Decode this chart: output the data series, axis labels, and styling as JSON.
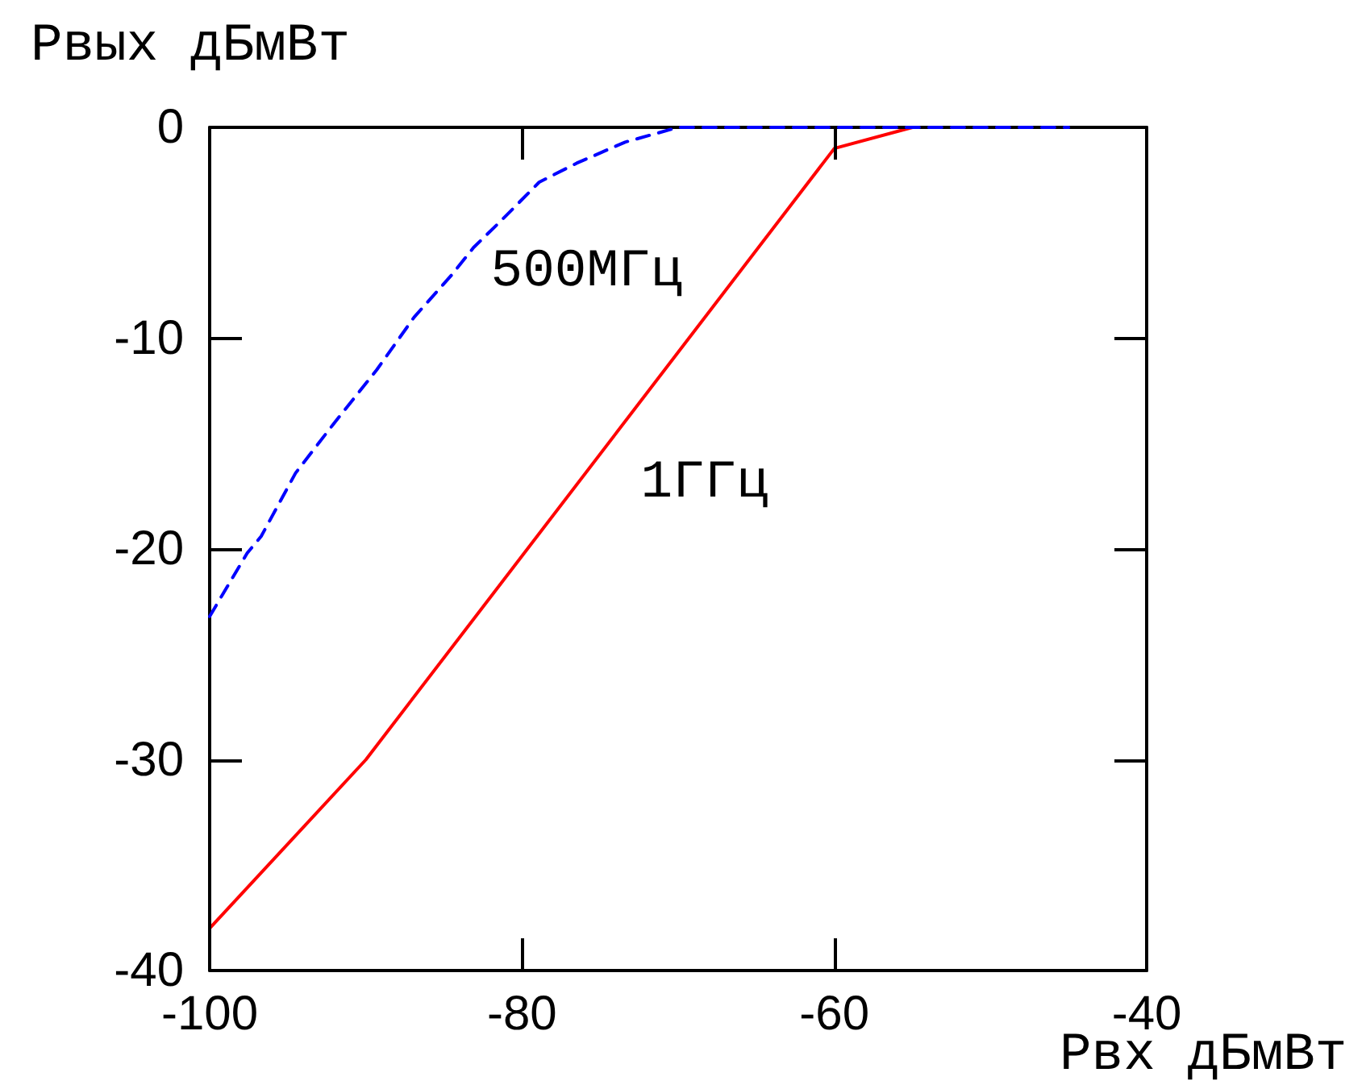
{
  "chart_data": {
    "type": "line",
    "xlabel": "Рвх дБмВт",
    "ylabel": "Рвых дБмВт",
    "xlim": [
      -100,
      -40
    ],
    "xticks": [
      -100,
      -80,
      -60,
      -40
    ],
    "ylim": [
      -40,
      0
    ],
    "yticks": [
      -40,
      -30,
      -20,
      -10,
      0
    ],
    "grid": false,
    "legend": false,
    "marker": "none",
    "series": [
      {
        "name": "500МГц",
        "color": "#0000ff",
        "line_style": "dashed",
        "x": [
          -100,
          -97.6,
          -96.7,
          -94.5,
          -92.1,
          -89.3,
          -86.9,
          -84.5,
          -83.1,
          -81.3,
          -78.9,
          -76.5,
          -73.4,
          -70,
          -45
        ],
        "values": [
          -23.2,
          -20.2,
          -19.4,
          -16.4,
          -14.1,
          -11.5,
          -9.0,
          -7.0,
          -5.7,
          -4.4,
          -2.6,
          -1.7,
          -0.7,
          0,
          0
        ]
      },
      {
        "name": "1ГГц",
        "color": "#ff0000",
        "line_style": "solid",
        "x": [
          -100,
          -90,
          -60,
          -55,
          -45
        ],
        "values": [
          -38,
          -30,
          -1,
          0,
          0
        ]
      }
    ]
  }
}
